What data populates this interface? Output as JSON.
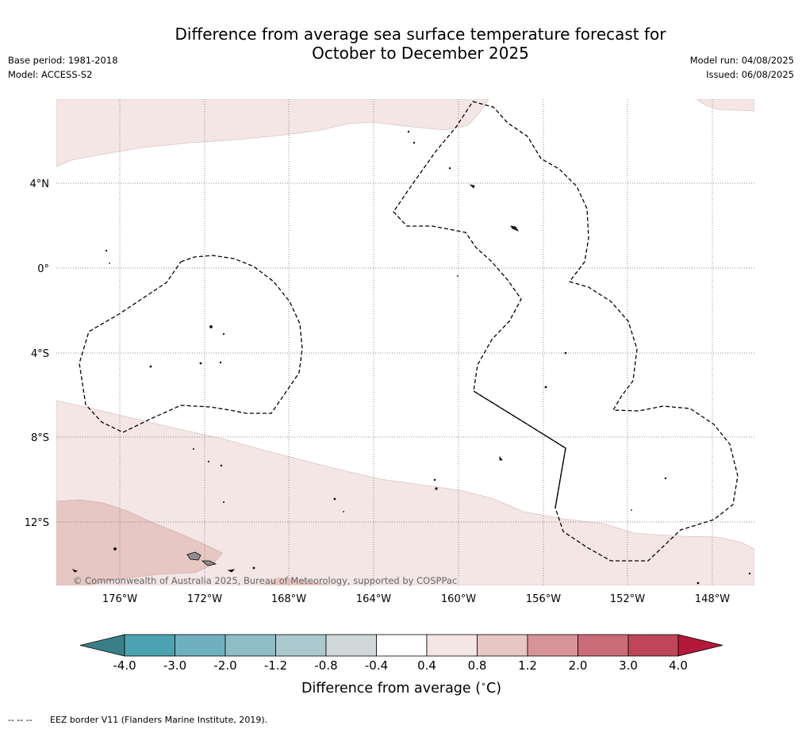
{
  "header": {
    "title_line1": "Difference from average sea surface temperature forecast for",
    "title_line2": "October to December 2025",
    "base_period": "Base period: 1981-2018",
    "model": "Model: ACCESS-S2",
    "model_run": "Model run: 04/08/2025",
    "issued": "Issued: 06/08/2025"
  },
  "map": {
    "lat_labels": [
      "4°N",
      "0°",
      "4°S",
      "8°S",
      "12°S"
    ],
    "lon_labels": [
      "176°W",
      "172°W",
      "168°W",
      "164°W",
      "160°W",
      "156°W",
      "152°W",
      "148°W"
    ],
    "copyright": "© Commonwealth of Australia 2025, Bureau of Meteorology, supported by COSPPac",
    "fill_colors": {
      "band_0_4_0_8": "#f3e6e5",
      "band_0_8_1_2": "#e6c7c3",
      "land": "#8f8f8f"
    }
  },
  "colorbar": {
    "tick_labels": [
      "-4.0",
      "-3.0",
      "-2.0",
      "-1.2",
      "-0.8",
      "-0.4",
      "0.4",
      "0.8",
      "1.2",
      "2.0",
      "3.0",
      "4.0"
    ],
    "colors": [
      "#3a7f88",
      "#4ba3b2",
      "#6eb0bd",
      "#8fbcc6",
      "#abc9cf",
      "#d0d8da",
      "#ffffff",
      "#f3e6e5",
      "#e6c7c3",
      "#d79398",
      "#c96c78",
      "#bf4559",
      "#b4193a"
    ],
    "label": "Difference from average (",
    "label_unit": "∘",
    "label_end": "C)"
  },
  "footer": {
    "dash_symbol": "-- -- --",
    "eez_note": "EEZ border V11 (Flanders Marine Institute, 2019)."
  }
}
